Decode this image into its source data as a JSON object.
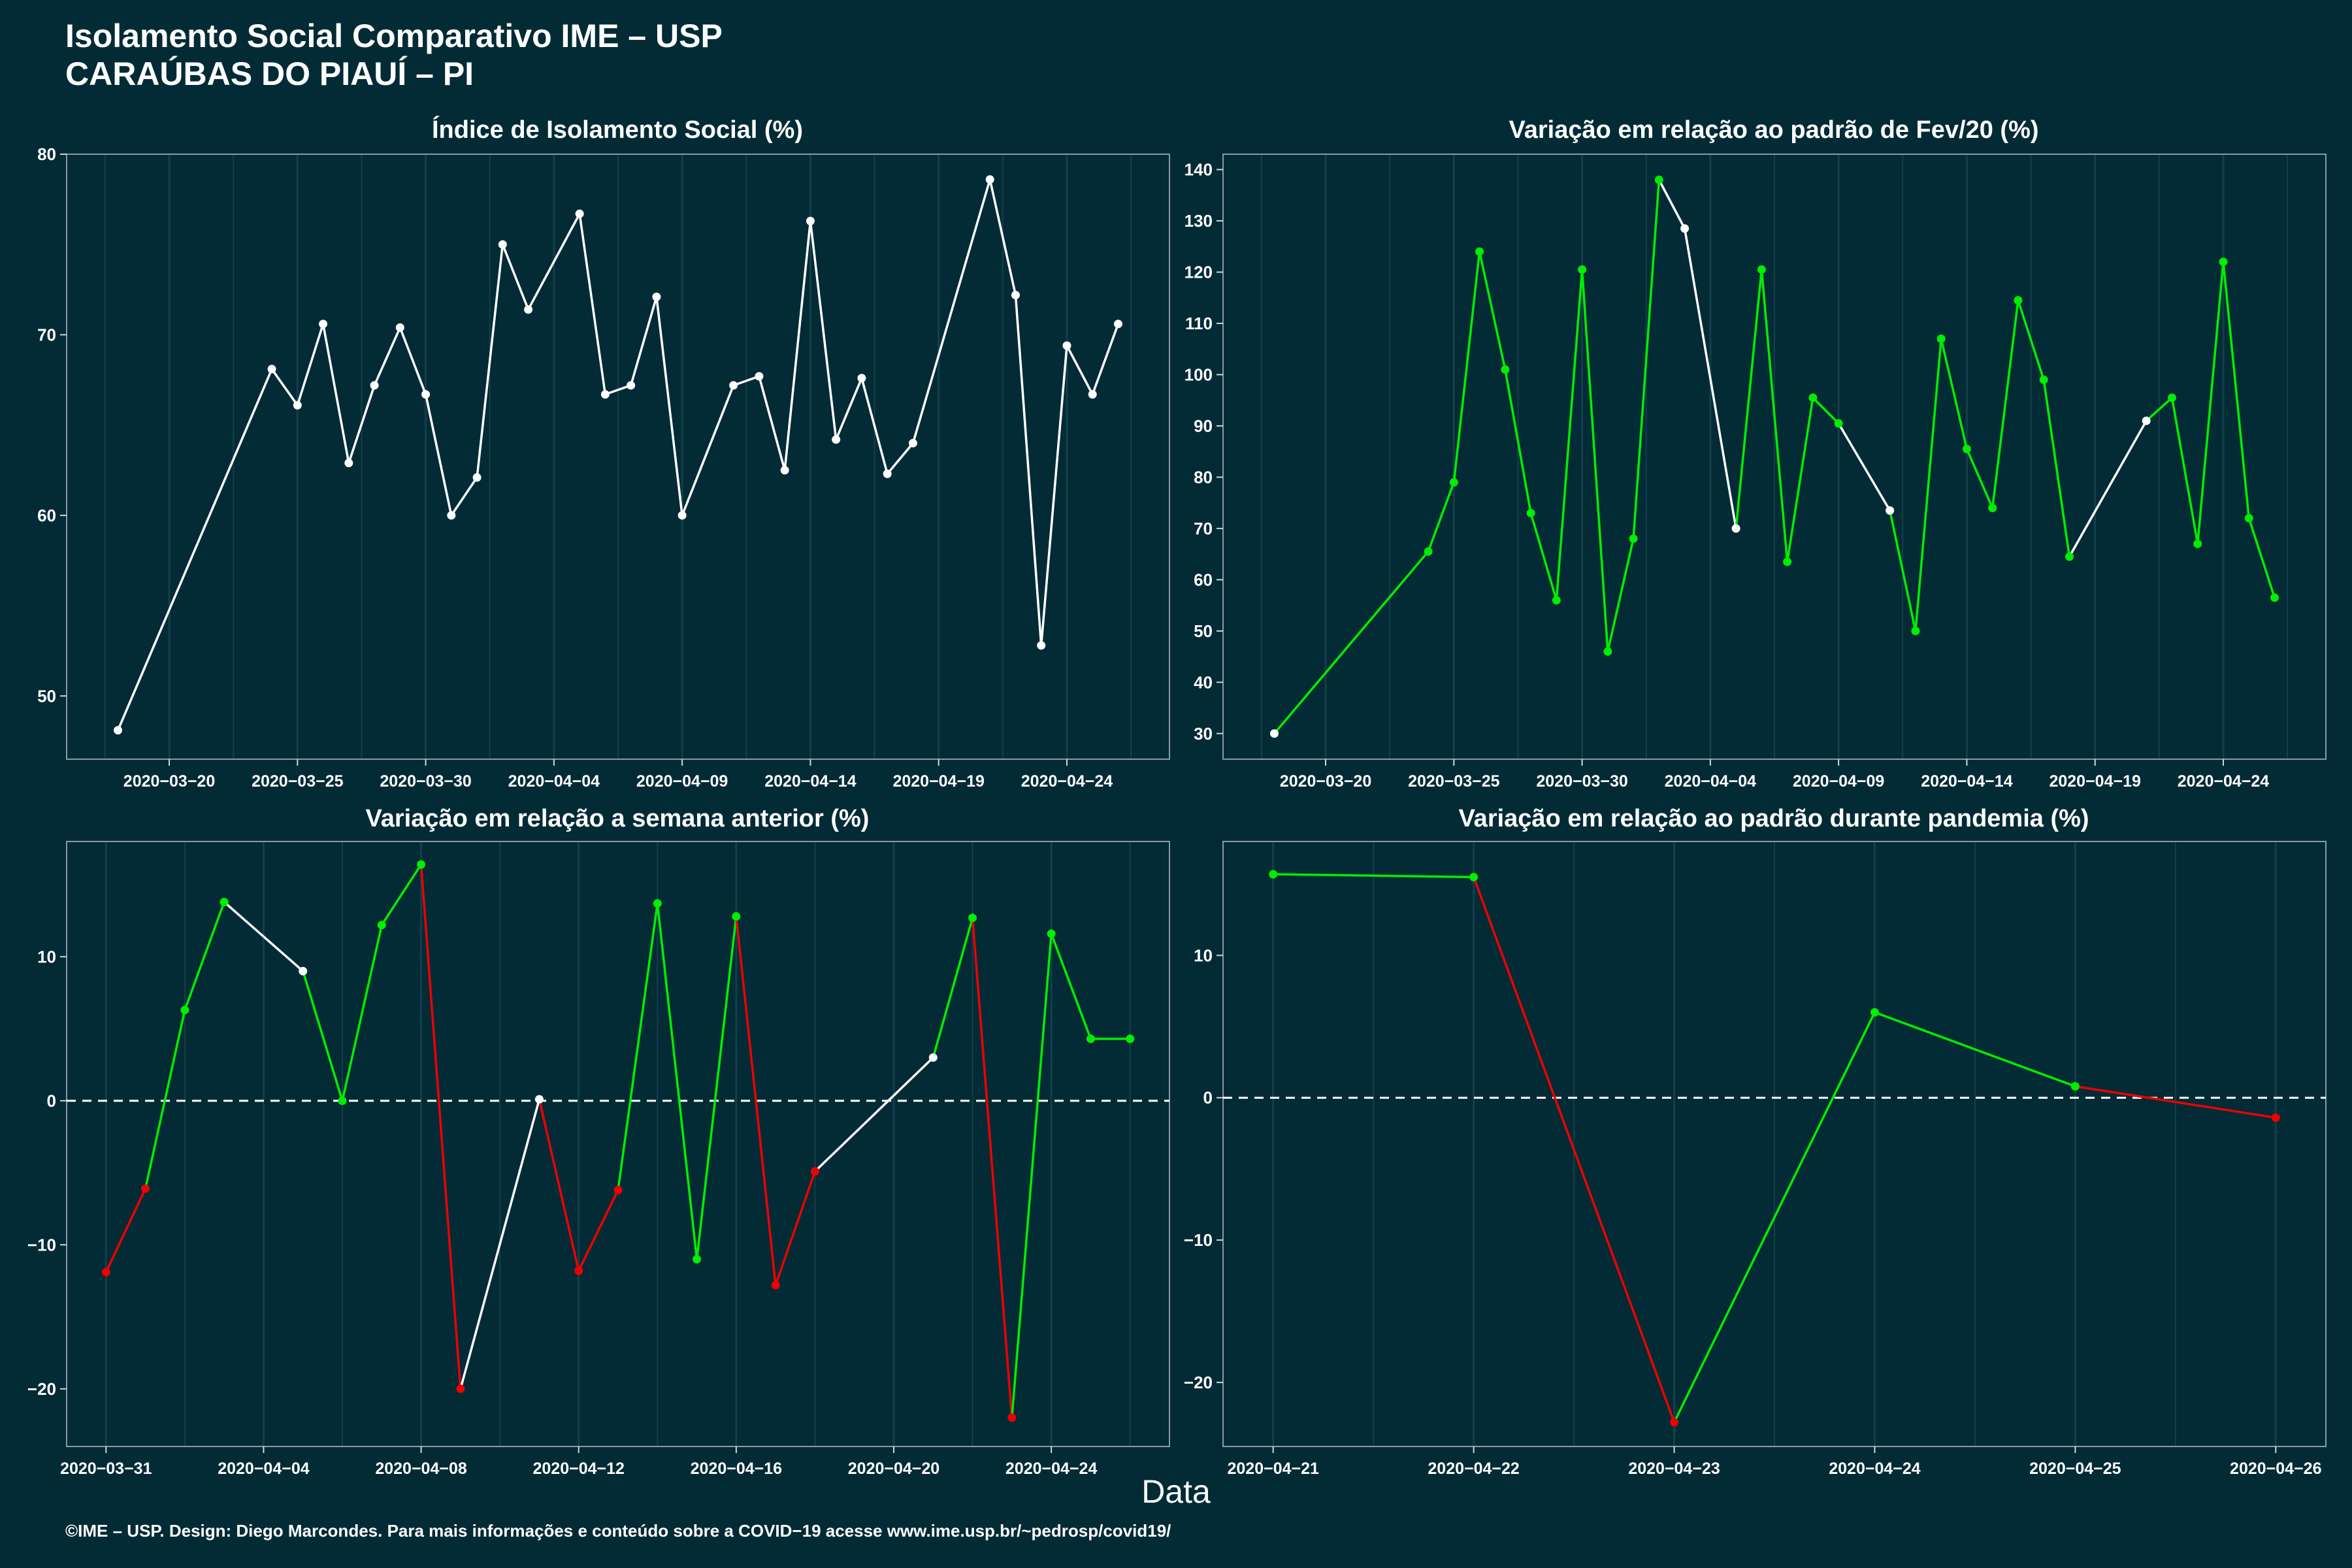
{
  "header": {
    "title_line1": "Isolamento Social Comparativo IME – USP",
    "title_line2": "CARAÚBAS DO PIAUÍ – PI"
  },
  "x_caption": "Data",
  "footer": "©IME – USP. Design: Diego Marcondes. Para mais informações e conteúdo sobre a COVID−19 acesse www.ime.usp.br/~pedrosp/covid19/",
  "colors": {
    "background": "#022b36",
    "neutral": "#ffffff",
    "up": "#00ee00",
    "down": "#ee0000",
    "grid": "#143f4a"
  },
  "chart_data": [
    {
      "type": "line",
      "title": "Índice de Isolamento Social (%)",
      "ylim": [
        46.5,
        80
      ],
      "yticks": [
        50,
        60,
        70,
        80
      ],
      "xticks": [
        "2020−03−20",
        "2020−03−25",
        "2020−03−30",
        "2020−04−04",
        "2020−04−09",
        "2020−04−14",
        "2020−04−19",
        "2020−04−24"
      ],
      "xrange": [
        "2020-03-16",
        "2020-04-28"
      ],
      "zero_line": false,
      "series": [
        {
          "x": [
            "2020-03-18",
            "2020-03-24",
            "2020-03-25",
            "2020-03-26",
            "2020-03-27",
            "2020-03-28",
            "2020-03-29",
            "2020-03-30",
            "2020-03-31",
            "2020-04-01",
            "2020-04-02",
            "2020-04-03",
            "2020-04-05",
            "2020-04-06",
            "2020-04-07",
            "2020-04-08",
            "2020-04-09",
            "2020-04-11",
            "2020-04-12",
            "2020-04-13",
            "2020-04-14",
            "2020-04-15",
            "2020-04-16",
            "2020-04-17",
            "2020-04-18",
            "2020-04-21",
            "2020-04-22",
            "2020-04-23",
            "2020-04-24",
            "2020-04-25",
            "2020-04-26"
          ],
          "values": [
            48.1,
            68.1,
            66.1,
            70.6,
            62.9,
            67.2,
            70.4,
            66.7,
            60.0,
            62.1,
            75.0,
            71.4,
            76.7,
            66.7,
            67.2,
            72.1,
            60.0,
            67.2,
            67.7,
            62.5,
            76.3,
            64.2,
            67.6,
            62.3,
            64.0,
            78.6,
            72.2,
            52.8,
            69.4,
            66.7,
            70.6
          ],
          "colors": [
            "w",
            "w",
            "w",
            "w",
            "w",
            "w",
            "w",
            "w",
            "w",
            "w",
            "w",
            "w",
            "w",
            "w",
            "w",
            "w",
            "w",
            "w",
            "w",
            "w",
            "w",
            "w",
            "w",
            "w",
            "w",
            "w",
            "w",
            "w",
            "w",
            "w",
            "w"
          ]
        }
      ]
    },
    {
      "type": "line",
      "title": "Variação em relação ao padrão de Fev/20 (%)",
      "ylim": [
        25,
        143
      ],
      "yticks": [
        30,
        40,
        50,
        60,
        70,
        80,
        90,
        100,
        110,
        120,
        130,
        140
      ],
      "xticks": [
        "2020−03−20",
        "2020−03−25",
        "2020−03−30",
        "2020−04−04",
        "2020−04−09",
        "2020−04−14",
        "2020−04−19",
        "2020−04−24"
      ],
      "xrange": [
        "2020-03-16",
        "2020-04-28"
      ],
      "zero_line": false,
      "series": [
        {
          "x": [
            "2020-03-18",
            "2020-03-24",
            "2020-03-25",
            "2020-03-26",
            "2020-03-27",
            "2020-03-28",
            "2020-03-29",
            "2020-03-30",
            "2020-03-31",
            "2020-04-01",
            "2020-04-02",
            "2020-04-03",
            "2020-04-05",
            "2020-04-06",
            "2020-04-07",
            "2020-04-08",
            "2020-04-09",
            "2020-04-11",
            "2020-04-12",
            "2020-04-13",
            "2020-04-14",
            "2020-04-15",
            "2020-04-16",
            "2020-04-17",
            "2020-04-18",
            "2020-04-21",
            "2020-04-22",
            "2020-04-23",
            "2020-04-24",
            "2020-04-25",
            "2020-04-26"
          ],
          "values": [
            30,
            65.5,
            79,
            124,
            101,
            73,
            56,
            120.5,
            46,
            68,
            138,
            128.5,
            70,
            120.5,
            63.5,
            95.5,
            90.5,
            73.5,
            50,
            107,
            85.5,
            74,
            114.5,
            99,
            64.5,
            91,
            95.5,
            67,
            122,
            72,
            56.5
          ],
          "colors": [
            "w",
            "g",
            "g",
            "g",
            "g",
            "g",
            "g",
            "g",
            "g",
            "g",
            "g",
            "w",
            "w",
            "g",
            "g",
            "g",
            "g",
            "w",
            "g",
            "g",
            "g",
            "g",
            "g",
            "g",
            "g",
            "w",
            "g",
            "g",
            "g",
            "g",
            "g"
          ]
        }
      ]
    },
    {
      "type": "line",
      "title": "Variação em relação a semana anterior (%)",
      "ylim": [
        -24,
        18
      ],
      "yticks": [
        -20,
        -10,
        0,
        10
      ],
      "xticks": [
        "2020−03−31",
        "2020−04−04",
        "2020−04−08",
        "2020−04−12",
        "2020−04−16",
        "2020−04−20",
        "2020−04−24"
      ],
      "xrange": [
        "2020-03-30",
        "2020-04-27"
      ],
      "zero_line": true,
      "series": [
        {
          "x": [
            "2020-03-31",
            "2020-04-01",
            "2020-04-02",
            "2020-04-03",
            "2020-04-05",
            "2020-04-06",
            "2020-04-07",
            "2020-04-08",
            "2020-04-09",
            "2020-04-11",
            "2020-04-12",
            "2020-04-13",
            "2020-04-14",
            "2020-04-15",
            "2020-04-16",
            "2020-04-17",
            "2020-04-18",
            "2020-04-21",
            "2020-04-22",
            "2020-04-23",
            "2020-04-24",
            "2020-04-25",
            "2020-04-26"
          ],
          "values": [
            -11.9,
            -6.1,
            6.3,
            13.8,
            9.0,
            0.0,
            12.2,
            16.4,
            -20.0,
            0.1,
            -11.8,
            -6.2,
            13.7,
            -11.0,
            12.8,
            -12.8,
            -4.9,
            3.0,
            12.7,
            -22.0,
            11.6,
            4.3,
            4.3
          ],
          "colors": [
            "r",
            "r",
            "g",
            "g",
            "w",
            "g",
            "g",
            "g",
            "r",
            "w",
            "r",
            "r",
            "g",
            "g",
            "g",
            "r",
            "r",
            "w",
            "g",
            "r",
            "g",
            "g",
            "g"
          ]
        }
      ]
    },
    {
      "type": "line",
      "title": "Variação em relação ao padrão durante pandemia (%)",
      "ylim": [
        -24.5,
        18
      ],
      "yticks": [
        -20,
        -10,
        0,
        10
      ],
      "xticks": [
        "2020−04−21",
        "2020−04−22",
        "2020−04−23",
        "2020−04−24",
        "2020−04−25",
        "2020−04−26"
      ],
      "xrange": [
        "2020-04-20.75",
        "2020-04-26.25"
      ],
      "zero_line": true,
      "series": [
        {
          "x": [
            "2020-04-21",
            "2020-04-22",
            "2020-04-23",
            "2020-04-24",
            "2020-04-25",
            "2020-04-26"
          ],
          "values": [
            15.7,
            15.5,
            -22.8,
            6.0,
            0.8,
            -1.4
          ],
          "colors": [
            "g",
            "g",
            "r",
            "g",
            "g",
            "r"
          ]
        }
      ]
    }
  ]
}
